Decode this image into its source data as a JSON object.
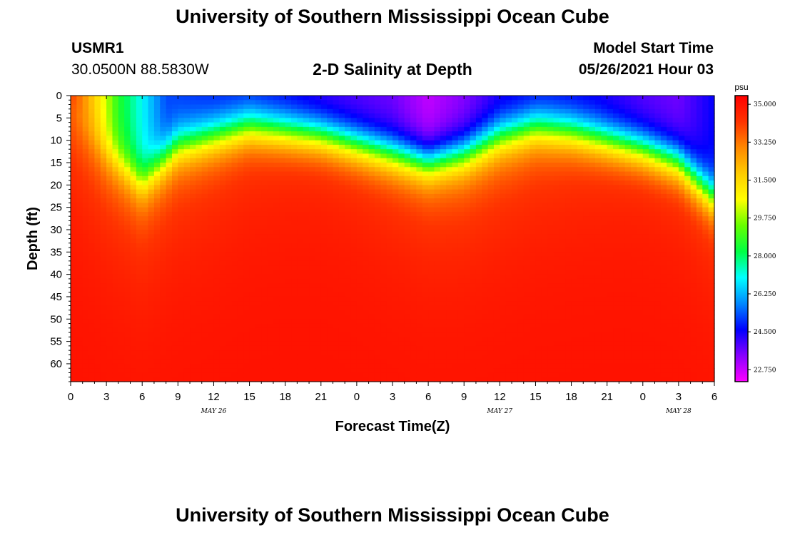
{
  "header": {
    "title": "University of Southern Mississippi Ocean Cube",
    "station_id": "USMR1",
    "station_coords": "30.0500N  88.5830W",
    "plot_title": "2-D Salinity at Depth",
    "model_start_label": "Model Start Time",
    "model_start_value": "05/26/2021 Hour 03"
  },
  "footer": {
    "title": "University of Southern Mississippi Ocean Cube"
  },
  "chart_data": {
    "type": "heatmap",
    "title": "2-D Salinity at Depth",
    "xlabel": "Forecast Time(Z)",
    "ylabel": "Depth (ft)",
    "colorbar_unit": "psu",
    "x_hours_from_start": [
      0,
      54
    ],
    "x_tick_labels": [
      "0",
      "3",
      "6",
      "9",
      "12",
      "15",
      "18",
      "21",
      "0",
      "3",
      "6",
      "9",
      "12",
      "15",
      "18",
      "21",
      "0",
      "3",
      "6"
    ],
    "date_labels": [
      {
        "label": "MAY 26",
        "hour": 12
      },
      {
        "label": "MAY 27",
        "hour": 36
      },
      {
        "label": "MAY 28",
        "hour": 51
      }
    ],
    "ylim": [
      0,
      64
    ],
    "y_ticks": [
      0,
      5,
      10,
      15,
      20,
      25,
      30,
      35,
      40,
      45,
      50,
      55,
      60
    ],
    "colorbar_ticks": [
      "35.000",
      "33.250",
      "31.500",
      "29.750",
      "28.000",
      "26.250",
      "24.500",
      "22.750"
    ],
    "colorbar_range": [
      22.2,
      35.4
    ],
    "colorscale": [
      "#ff00ff",
      "#8800ff",
      "#0000ff",
      "#0088ff",
      "#00ffff",
      "#00ff44",
      "#66ff00",
      "#ffff00",
      "#ffcc00",
      "#ff8800",
      "#ff3300",
      "#ff0000"
    ],
    "surface_salinity_by_hour": [
      [
        0,
        34.4
      ],
      [
        2,
        31.6
      ],
      [
        4,
        28.6
      ],
      [
        6,
        27.0
      ],
      [
        8,
        25.2
      ],
      [
        12,
        24.8
      ],
      [
        15,
        24.7
      ],
      [
        18,
        24.4
      ],
      [
        21,
        24.0
      ],
      [
        24,
        23.8
      ],
      [
        27,
        23.6
      ],
      [
        30,
        22.8
      ],
      [
        33,
        23.4
      ],
      [
        36,
        24.2
      ],
      [
        40,
        24.5
      ],
      [
        44,
        24.3
      ],
      [
        48,
        23.8
      ],
      [
        51,
        23.6
      ],
      [
        54,
        24.6
      ]
    ],
    "halocline_depth_ft_by_hour": [
      [
        0,
        2
      ],
      [
        3,
        12
      ],
      [
        6,
        19
      ],
      [
        9,
        11
      ],
      [
        12,
        9
      ],
      [
        15,
        7
      ],
      [
        18,
        8
      ],
      [
        21,
        9
      ],
      [
        24,
        11
      ],
      [
        27,
        13
      ],
      [
        30,
        15
      ],
      [
        33,
        13
      ],
      [
        36,
        9
      ],
      [
        39,
        7
      ],
      [
        42,
        8
      ],
      [
        45,
        10
      ],
      [
        48,
        12
      ],
      [
        51,
        15
      ],
      [
        54,
        23
      ]
    ],
    "deep_max_salinity": 35.0
  }
}
